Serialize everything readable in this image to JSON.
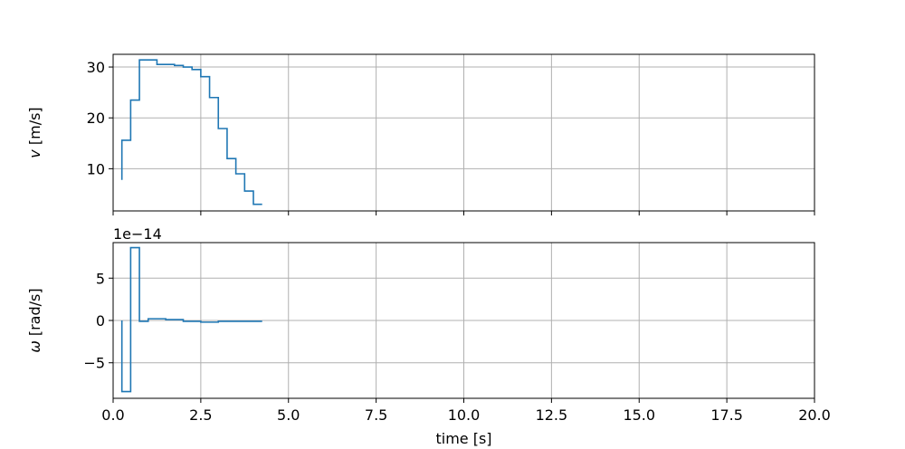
{
  "chart_data": [
    {
      "type": "line",
      "step": true,
      "xlabel": "",
      "ylabel_symbol": "v",
      "ylabel_unit": " [m/s]",
      "xlim": [
        0,
        20
      ],
      "ylim": [
        1.7,
        32.5
      ],
      "xticks": [
        0,
        2.5,
        5,
        7.5,
        10,
        12.5,
        15,
        17.5,
        20
      ],
      "yticks": [
        10,
        20,
        30
      ],
      "yticklabels": [
        "10",
        "20",
        "30"
      ],
      "show_xticklabels": false,
      "grid": true,
      "series": [
        {
          "color": "#1f77b4",
          "x": [
            0.25,
            0.25,
            0.5,
            0.75,
            1.25,
            1.75,
            2.0,
            2.25,
            2.5,
            2.75,
            3.0,
            3.25,
            3.5,
            3.75,
            4.0,
            4.25
          ],
          "y": [
            7.8,
            15.6,
            23.5,
            31.4,
            30.5,
            30.3,
            30.0,
            29.5,
            28.1,
            24.0,
            17.9,
            12.0,
            9.0,
            5.6,
            3.0,
            3.0
          ]
        }
      ]
    },
    {
      "type": "line",
      "step": true,
      "xlabel": "time [s]",
      "ylabel_symbol": "ω",
      "ylabel_unit": " [rad/s]",
      "offset_text": "1e−14",
      "xlim": [
        0,
        20
      ],
      "ylim": [
        -9.2,
        9.2
      ],
      "xticks": [
        0,
        2.5,
        5,
        7.5,
        10,
        12.5,
        15,
        17.5,
        20
      ],
      "xticklabels": [
        "0.0",
        "2.5",
        "5.0",
        "7.5",
        "10.0",
        "12.5",
        "15.0",
        "17.5",
        "20.0"
      ],
      "yticks": [
        -5,
        0,
        5
      ],
      "yticklabels": [
        "−5",
        "0",
        "5"
      ],
      "show_xticklabels": true,
      "grid": true,
      "series": [
        {
          "color": "#1f77b4",
          "x": [
            0.25,
            0.25,
            0.5,
            0.75,
            1.0,
            1.5,
            2.0,
            2.5,
            3.0,
            4.25
          ],
          "y": [
            0.0,
            -8.4,
            8.6,
            -0.1,
            0.2,
            0.1,
            -0.1,
            -0.2,
            -0.1,
            -0.1
          ]
        }
      ]
    }
  ]
}
